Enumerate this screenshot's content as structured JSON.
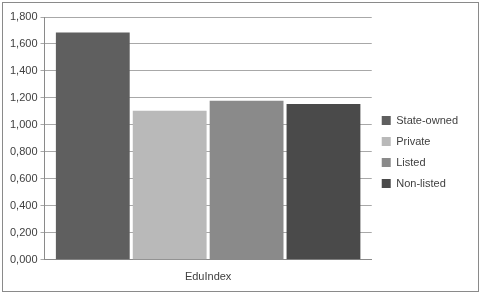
{
  "chart_data": {
    "type": "bar",
    "categories": [
      "EduIndex"
    ],
    "series": [
      {
        "name": "State-owned",
        "color": "#5f5f5f",
        "values": [
          1.685
        ]
      },
      {
        "name": "Private",
        "color": "#b9b9b9",
        "values": [
          1.105
        ]
      },
      {
        "name": "Listed",
        "color": "#8a8a8a",
        "values": [
          1.18
        ]
      },
      {
        "name": "Non-listed",
        "color": "#4a4a4a",
        "values": [
          1.155
        ]
      }
    ],
    "ylim": [
      0,
      1.8
    ],
    "yticks": [
      {
        "value": 0,
        "label": "0,000"
      },
      {
        "value": 0.2,
        "label": "0,200"
      },
      {
        "value": 0.4,
        "label": "0,400"
      },
      {
        "value": 0.6,
        "label": "0,600"
      },
      {
        "value": 0.8,
        "label": "0,800"
      },
      {
        "value": 1.0,
        "label": "1,000"
      },
      {
        "value": 1.2,
        "label": "1,200"
      },
      {
        "value": 1.4,
        "label": "1,400"
      },
      {
        "value": 1.6,
        "label": "1,600"
      },
      {
        "value": 1.8,
        "label": "1,800"
      }
    ],
    "grid": true,
    "legend": "right"
  }
}
